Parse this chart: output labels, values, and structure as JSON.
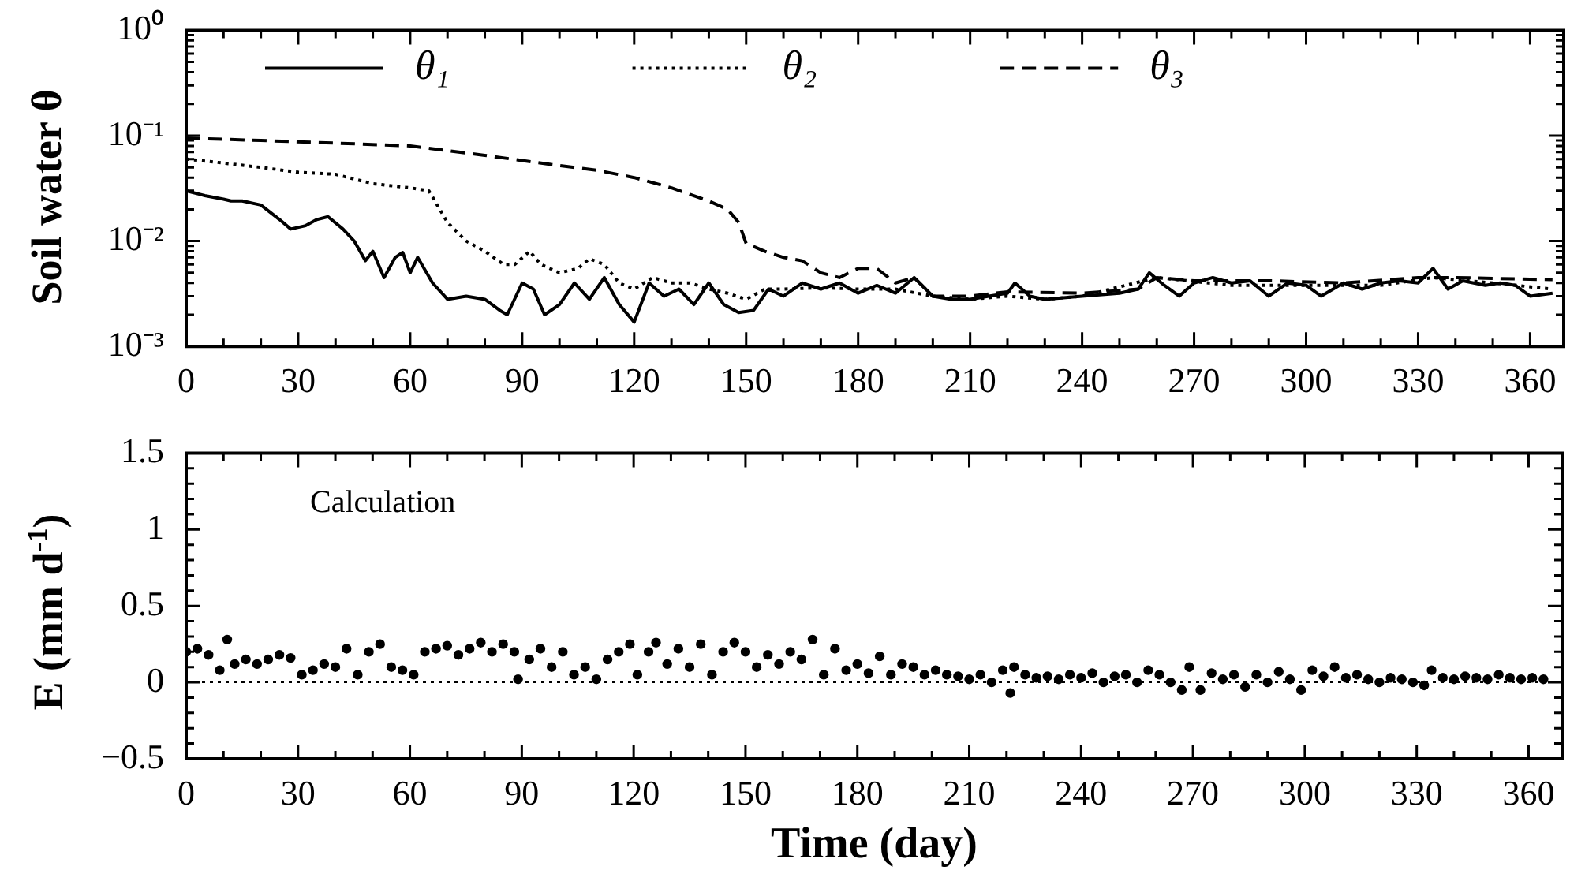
{
  "chart_data": [
    {
      "type": "line",
      "ylabel": "Soil water θ",
      "log": true,
      "legend": "top",
      "xlim": [
        0,
        369
      ],
      "xticks": [
        0,
        {
          "value": 10,
          "label": null
        },
        {
          "value": 20,
          "label": null
        },
        30,
        {
          "value": 40,
          "label": null
        },
        {
          "value": 50,
          "label": null
        },
        60,
        {
          "value": 70,
          "label": null
        },
        {
          "value": 80,
          "label": null
        },
        90,
        {
          "value": 100,
          "label": null
        },
        {
          "value": 110,
          "label": null
        },
        120,
        {
          "value": 130,
          "label": null
        },
        {
          "value": 140,
          "label": null
        },
        150,
        {
          "value": 160,
          "label": null
        },
        {
          "value": 170,
          "label": null
        },
        180,
        {
          "value": 190,
          "label": null
        },
        {
          "value": 200,
          "label": null
        },
        210,
        {
          "value": 220,
          "label": null
        },
        {
          "value": 230,
          "label": null
        },
        240,
        {
          "value": 250,
          "label": null
        },
        {
          "value": 260,
          "label": null
        },
        270,
        {
          "value": 280,
          "label": null
        },
        {
          "value": 290,
          "label": null
        },
        300,
        {
          "value": 310,
          "label": null
        },
        {
          "value": 320,
          "label": null
        },
        330,
        {
          "value": 340,
          "label": null
        },
        {
          "value": 350,
          "label": null
        },
        360
      ],
      "ylim": [
        0.001,
        1
      ],
      "yticks": [
        {
          "value": 0.001,
          "label": "10⁻³"
        },
        {
          "value": 0.002,
          "label": null
        },
        {
          "value": 0.003,
          "label": null
        },
        {
          "value": 0.004,
          "label": null
        },
        {
          "value": 0.005,
          "label": null
        },
        {
          "value": 0.006,
          "label": null
        },
        {
          "value": 0.007,
          "label": null
        },
        {
          "value": 0.008,
          "label": null
        },
        {
          "value": 0.009,
          "label": null
        },
        {
          "value": 0.01,
          "label": "10⁻²"
        },
        {
          "value": 0.02,
          "label": null
        },
        {
          "value": 0.03,
          "label": null
        },
        {
          "value": 0.04,
          "label": null
        },
        {
          "value": 0.05,
          "label": null
        },
        {
          "value": 0.06,
          "label": null
        },
        {
          "value": 0.07,
          "label": null
        },
        {
          "value": 0.08,
          "label": null
        },
        {
          "value": 0.09,
          "label": null
        },
        {
          "value": 0.1,
          "label": "10⁻¹"
        },
        {
          "value": 0.2,
          "label": null
        },
        {
          "value": 0.3,
          "label": null
        },
        {
          "value": 0.4,
          "label": null
        },
        {
          "value": 0.5,
          "label": null
        },
        {
          "value": 0.6,
          "label": null
        },
        {
          "value": 0.7,
          "label": null
        },
        {
          "value": 0.8,
          "label": null
        },
        {
          "value": 0.9,
          "label": null
        },
        {
          "value": 1,
          "label": "10⁰"
        }
      ],
      "series": [
        {
          "name": "θ₁",
          "color": "#000000",
          "line_style": "solid",
          "x": [
            0,
            5,
            10,
            12,
            15,
            20,
            25,
            28,
            32,
            35,
            38,
            42,
            45,
            48,
            50,
            53,
            56,
            58,
            60,
            62,
            66,
            70,
            75,
            80,
            84,
            86,
            90,
            93,
            96,
            100,
            104,
            108,
            112,
            116,
            120,
            124,
            128,
            132,
            136,
            140,
            144,
            148,
            152,
            156,
            160,
            165,
            170,
            175,
            180,
            185,
            190,
            195,
            200,
            205,
            210,
            215,
            220,
            222,
            226,
            230,
            240,
            250,
            255,
            258,
            262,
            266,
            270,
            275,
            280,
            285,
            290,
            295,
            300,
            304,
            310,
            315,
            320,
            325,
            330,
            334,
            338,
            342,
            348,
            352,
            356,
            360,
            366
          ],
          "values": [
            0.03,
            0.027,
            0.025,
            0.024,
            0.024,
            0.022,
            0.016,
            0.013,
            0.014,
            0.016,
            0.017,
            0.013,
            0.01,
            0.0065,
            0.008,
            0.0045,
            0.007,
            0.0078,
            0.005,
            0.007,
            0.004,
            0.0028,
            0.003,
            0.0028,
            0.0022,
            0.002,
            0.004,
            0.0035,
            0.002,
            0.0025,
            0.004,
            0.0028,
            0.0045,
            0.0025,
            0.0017,
            0.004,
            0.003,
            0.0035,
            0.0025,
            0.004,
            0.0025,
            0.0021,
            0.0022,
            0.0035,
            0.003,
            0.004,
            0.0035,
            0.004,
            0.0032,
            0.0038,
            0.0032,
            0.0045,
            0.003,
            0.0028,
            0.0028,
            0.003,
            0.0032,
            0.004,
            0.003,
            0.0028,
            0.003,
            0.0032,
            0.0035,
            0.005,
            0.0038,
            0.003,
            0.004,
            0.0045,
            0.004,
            0.0042,
            0.003,
            0.004,
            0.0038,
            0.003,
            0.004,
            0.0035,
            0.004,
            0.0042,
            0.004,
            0.0055,
            0.0035,
            0.0042,
            0.0038,
            0.004,
            0.0038,
            0.003,
            0.0032
          ]
        },
        {
          "name": "θ₂",
          "color": "#000000",
          "line_style": "dotted",
          "x": [
            0,
            10,
            20,
            30,
            40,
            50,
            60,
            65,
            70,
            75,
            80,
            85,
            88,
            92,
            95,
            100,
            105,
            108,
            112,
            116,
            120,
            125,
            130,
            135,
            140,
            145,
            150,
            155,
            160,
            170,
            180,
            190,
            200,
            210,
            220,
            230,
            240,
            260,
            280,
            300,
            320,
            334,
            350,
            366
          ],
          "values": [
            0.06,
            0.055,
            0.05,
            0.045,
            0.043,
            0.035,
            0.032,
            0.03,
            0.015,
            0.01,
            0.008,
            0.006,
            0.006,
            0.008,
            0.006,
            0.005,
            0.0055,
            0.0068,
            0.006,
            0.004,
            0.0035,
            0.0045,
            0.004,
            0.004,
            0.0035,
            0.0032,
            0.0028,
            0.0035,
            0.0035,
            0.0036,
            0.0035,
            0.0035,
            0.003,
            0.0028,
            0.003,
            0.0028,
            0.003,
            0.0045,
            0.0038,
            0.0038,
            0.0038,
            0.0045,
            0.004,
            0.0035
          ]
        },
        {
          "name": "θ₃",
          "color": "#000000",
          "line_style": "dashed",
          "x": [
            0,
            20,
            40,
            60,
            80,
            100,
            110,
            120,
            130,
            140,
            145,
            148,
            150,
            155,
            160,
            165,
            170,
            175,
            180,
            185,
            190,
            195,
            200,
            210,
            220,
            240,
            255,
            260,
            270,
            290,
            310,
            330,
            340,
            366
          ],
          "values": [
            0.095,
            0.09,
            0.085,
            0.08,
            0.065,
            0.052,
            0.047,
            0.04,
            0.032,
            0.024,
            0.02,
            0.015,
            0.0095,
            0.008,
            0.007,
            0.0065,
            0.005,
            0.0045,
            0.0055,
            0.0055,
            0.004,
            0.0045,
            0.003,
            0.003,
            0.0033,
            0.0032,
            0.0035,
            0.0045,
            0.0042,
            0.0042,
            0.004,
            0.0045,
            0.0045,
            0.0043
          ]
        }
      ]
    },
    {
      "type": "scatter",
      "ylabel": "E (mm d$^{-1}$)",
      "xlabel": "Time (day)",
      "marker": "circle",
      "color": "#000000",
      "annotations": [
        "Calculation"
      ],
      "ref_lines": [
        {
          "axis": "y",
          "value": 0,
          "line_style": "dotted"
        }
      ],
      "xlim": [
        0,
        369
      ],
      "xticks": [
        0,
        {
          "value": 10,
          "label": null
        },
        {
          "value": 20,
          "label": null
        },
        30,
        {
          "value": 40,
          "label": null
        },
        {
          "value": 50,
          "label": null
        },
        60,
        {
          "value": 70,
          "label": null
        },
        {
          "value": 80,
          "label": null
        },
        90,
        {
          "value": 100,
          "label": null
        },
        {
          "value": 110,
          "label": null
        },
        120,
        {
          "value": 130,
          "label": null
        },
        {
          "value": 140,
          "label": null
        },
        150,
        {
          "value": 160,
          "label": null
        },
        {
          "value": 170,
          "label": null
        },
        180,
        {
          "value": 190,
          "label": null
        },
        {
          "value": 200,
          "label": null
        },
        210,
        {
          "value": 220,
          "label": null
        },
        {
          "value": 230,
          "label": null
        },
        240,
        {
          "value": 250,
          "label": null
        },
        {
          "value": 260,
          "label": null
        },
        270,
        {
          "value": 280,
          "label": null
        },
        {
          "value": 290,
          "label": null
        },
        300,
        {
          "value": 310,
          "label": null
        },
        {
          "value": 320,
          "label": null
        },
        330,
        {
          "value": 340,
          "label": null
        },
        {
          "value": 350,
          "label": null
        },
        360
      ],
      "ylim": [
        -0.5,
        1.5
      ],
      "yticks": [
        {
          "value": -0.5,
          "label": "−0.5"
        },
        {
          "value": -0.4,
          "label": null
        },
        {
          "value": -0.3,
          "label": null
        },
        {
          "value": -0.2,
          "label": null
        },
        {
          "value": -0.1,
          "label": null
        },
        0,
        {
          "value": 0.1,
          "label": null
        },
        {
          "value": 0.2,
          "label": null
        },
        {
          "value": 0.3,
          "label": null
        },
        {
          "value": 0.4,
          "label": null
        },
        0.5,
        {
          "value": 0.6,
          "label": null
        },
        {
          "value": 0.7,
          "label": null
        },
        {
          "value": 0.8,
          "label": null
        },
        {
          "value": 0.9,
          "label": null
        },
        1,
        {
          "value": 1.1,
          "label": null
        },
        {
          "value": 1.2,
          "label": null
        },
        {
          "value": 1.3,
          "label": null
        },
        {
          "value": 1.4,
          "label": null
        },
        1.5
      ],
      "x": [
        0,
        3,
        6,
        9,
        11,
        13,
        16,
        19,
        22,
        25,
        28,
        31,
        34,
        37,
        40,
        43,
        46,
        49,
        52,
        55,
        58,
        61,
        64,
        67,
        70,
        73,
        76,
        79,
        82,
        85,
        88,
        89,
        92,
        95,
        98,
        101,
        104,
        107,
        110,
        113,
        116,
        119,
        121,
        124,
        126,
        129,
        132,
        135,
        138,
        141,
        144,
        147,
        150,
        153,
        156,
        159,
        162,
        165,
        168,
        171,
        174,
        177,
        180,
        183,
        186,
        189,
        192,
        195,
        198,
        201,
        204,
        207,
        210,
        213,
        216,
        219,
        221,
        222,
        225,
        228,
        231,
        234,
        237,
        240,
        243,
        246,
        249,
        252,
        255,
        258,
        261,
        264,
        267,
        269,
        272,
        275,
        278,
        281,
        284,
        287,
        290,
        293,
        296,
        299,
        302,
        305,
        308,
        311,
        314,
        317,
        320,
        323,
        326,
        329,
        332,
        334,
        337,
        340,
        343,
        346,
        349,
        352,
        355,
        358,
        361,
        364
      ],
      "values": [
        0.2,
        0.22,
        0.18,
        0.08,
        0.28,
        0.12,
        0.15,
        0.12,
        0.15,
        0.18,
        0.16,
        0.05,
        0.08,
        0.12,
        0.1,
        0.22,
        0.05,
        0.2,
        0.25,
        0.1,
        0.08,
        0.05,
        0.2,
        0.22,
        0.24,
        0.18,
        0.22,
        0.26,
        0.2,
        0.25,
        0.2,
        0.02,
        0.15,
        0.22,
        0.1,
        0.2,
        0.05,
        0.1,
        0.02,
        0.15,
        0.2,
        0.25,
        0.05,
        0.2,
        0.26,
        0.12,
        0.22,
        0.1,
        0.25,
        0.05,
        0.2,
        0.26,
        0.2,
        0.1,
        0.18,
        0.12,
        0.2,
        0.15,
        0.28,
        0.05,
        0.22,
        0.08,
        0.12,
        0.06,
        0.17,
        0.05,
        0.12,
        0.1,
        0.05,
        0.08,
        0.05,
        0.04,
        0.02,
        0.05,
        0.0,
        0.08,
        -0.07,
        0.1,
        0.05,
        0.03,
        0.04,
        0.02,
        0.05,
        0.03,
        0.06,
        0.0,
        0.04,
        0.05,
        0.0,
        0.08,
        0.05,
        0.0,
        -0.05,
        0.1,
        -0.05,
        0.06,
        0.02,
        0.05,
        -0.03,
        0.05,
        0.0,
        0.07,
        0.02,
        -0.05,
        0.08,
        0.04,
        0.1,
        0.03,
        0.05,
        0.02,
        0.0,
        0.03,
        0.02,
        0.0,
        -0.02,
        0.08,
        0.03,
        0.02,
        0.04,
        0.03,
        0.02,
        0.05,
        0.03,
        0.02,
        0.03,
        0.02
      ]
    }
  ]
}
